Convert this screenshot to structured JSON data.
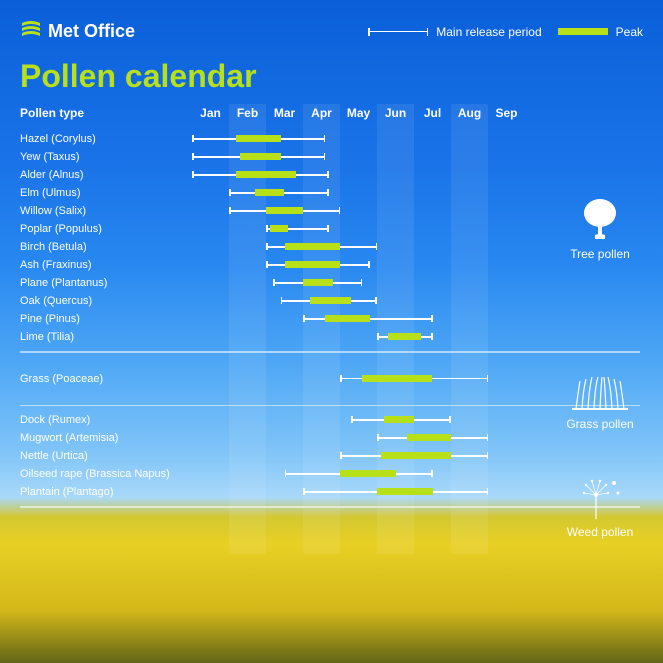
{
  "brand": "Met Office",
  "title": "Pollen calendar",
  "legend": {
    "release": "Main release period",
    "peak": "Peak"
  },
  "columnHeader": "Pollen type",
  "months": [
    "Jan",
    "Feb",
    "Mar",
    "Apr",
    "May",
    "Jun",
    "Jul",
    "Aug",
    "Sep"
  ],
  "colors": {
    "accent": "#b8e019",
    "text": "#ffffff",
    "line": "#ffffff",
    "peak": "#b8e019"
  },
  "chart": {
    "monthWidthPx": 37,
    "barHeightPx": 7,
    "lineHeightPx": 1.5
  },
  "categories": [
    {
      "label": "Tree pollen",
      "topPx": 195
    },
    {
      "label": "Grass pollen",
      "topPx": 375
    },
    {
      "label": "Weed pollen",
      "topPx": 475
    }
  ],
  "sections": [
    {
      "name": "tree",
      "rows": [
        {
          "label": "Hazel (Corylus)",
          "releaseStart": 0.0,
          "releaseEnd": 3.6,
          "peakStart": 1.2,
          "peakEnd": 2.4
        },
        {
          "label": "Yew (Taxus)",
          "releaseStart": 0.0,
          "releaseEnd": 3.6,
          "peakStart": 1.3,
          "peakEnd": 2.4
        },
        {
          "label": "Alder (Alnus)",
          "releaseStart": 0.0,
          "releaseEnd": 3.7,
          "peakStart": 1.2,
          "peakEnd": 2.8
        },
        {
          "label": "Elm (Ulmus)",
          "releaseStart": 1.0,
          "releaseEnd": 3.7,
          "peakStart": 1.7,
          "peakEnd": 2.5
        },
        {
          "label": "Willow (Salix)",
          "releaseStart": 1.0,
          "releaseEnd": 4.0,
          "peakStart": 2.0,
          "peakEnd": 3.0
        },
        {
          "label": "Poplar (Populus)",
          "releaseStart": 2.0,
          "releaseEnd": 3.7,
          "peakStart": 2.1,
          "peakEnd": 2.6
        },
        {
          "label": "Birch (Betula)",
          "releaseStart": 2.0,
          "releaseEnd": 5.0,
          "peakStart": 2.5,
          "peakEnd": 4.0
        },
        {
          "label": "Ash (Fraxinus)",
          "releaseStart": 2.0,
          "releaseEnd": 4.8,
          "peakStart": 2.5,
          "peakEnd": 4.0
        },
        {
          "label": "Plane (Plantanus)",
          "releaseStart": 2.2,
          "releaseEnd": 4.6,
          "peakStart": 3.0,
          "peakEnd": 3.8
        },
        {
          "label": "Oak (Quercus)",
          "releaseStart": 2.4,
          "releaseEnd": 5.0,
          "peakStart": 3.2,
          "peakEnd": 4.3
        },
        {
          "label": "Pine (Pinus)",
          "releaseStart": 3.0,
          "releaseEnd": 6.5,
          "peakStart": 3.6,
          "peakEnd": 4.8
        },
        {
          "label": "Lime (Tilia)",
          "releaseStart": 5.0,
          "releaseEnd": 6.5,
          "peakStart": 5.3,
          "peakEnd": 6.2
        }
      ]
    },
    {
      "name": "grass",
      "rows": [
        {
          "label": "Grass (Poaceae)",
          "releaseStart": 4.0,
          "releaseEnd": 8.0,
          "peakStart": 4.6,
          "peakEnd": 6.5
        }
      ]
    },
    {
      "name": "weed",
      "rows": [
        {
          "label": "Dock (Rumex)",
          "releaseStart": 4.3,
          "releaseEnd": 7.0,
          "peakStart": 5.2,
          "peakEnd": 6.0
        },
        {
          "label": "Mugwort (Artemisia)",
          "releaseStart": 5.0,
          "releaseEnd": 8.0,
          "peakStart": 5.8,
          "peakEnd": 7.0
        },
        {
          "label": "Nettle (Urtica)",
          "releaseStart": 4.0,
          "releaseEnd": 8.0,
          "peakStart": 5.1,
          "peakEnd": 7.0
        },
        {
          "label": "Oilseed rape (Brassica Napus)",
          "releaseStart": 2.5,
          "releaseEnd": 6.5,
          "peakStart": 4.0,
          "peakEnd": 5.5
        },
        {
          "label": "Plantain (Plantago)",
          "releaseStart": 3.0,
          "releaseEnd": 8.0,
          "peakStart": 5.0,
          "peakEnd": 6.5
        }
      ]
    }
  ]
}
